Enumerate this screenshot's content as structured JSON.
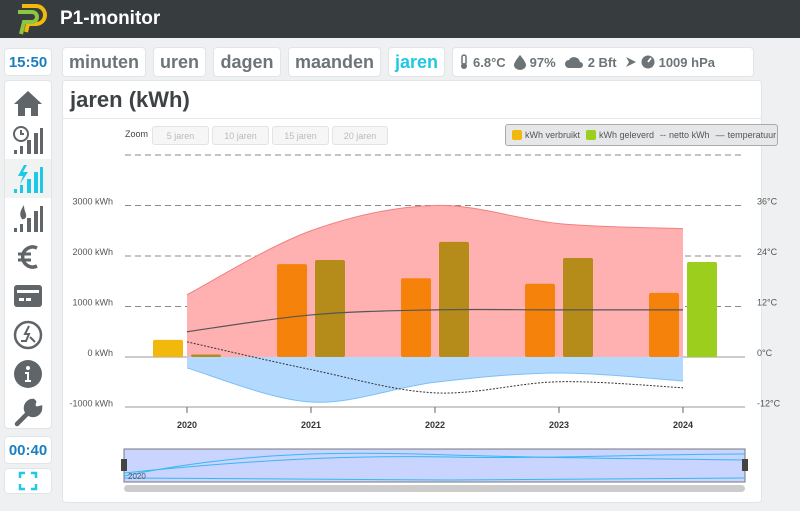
{
  "header": {
    "title": "P1-monitor",
    "logo_text": "P"
  },
  "clock": "15:50",
  "tabs": [
    {
      "label": "minuten"
    },
    {
      "label": "uren"
    },
    {
      "label": "dagen"
    },
    {
      "label": "maanden"
    },
    {
      "label": "jaren",
      "active": true
    }
  ],
  "weather": {
    "temperature": "6.8°C",
    "humidity": "97%",
    "wind": "2 Bft",
    "pressure": "1009 hPa"
  },
  "sidebar": {
    "items": [
      {
        "icon": "home-icon"
      },
      {
        "icon": "clock-bars-icon"
      },
      {
        "icon": "power-bars-icon",
        "active": true
      },
      {
        "icon": "gas-bars-icon"
      },
      {
        "icon": "euro-icon"
      },
      {
        "icon": "meter-icon"
      },
      {
        "icon": "solar-icon"
      },
      {
        "icon": "info-icon"
      },
      {
        "icon": "wrench-icon"
      }
    ]
  },
  "refresh_timer": "00:40",
  "panel": {
    "title": "jaren (kWh)"
  },
  "zoom": {
    "label": "Zoom",
    "buttons": [
      "5 jaren",
      "10 jaren",
      "15 jaren",
      "20 jaren"
    ]
  },
  "colors": {
    "accent": "#1ec8e6",
    "verbruikt": "#f5820a",
    "verbruikt_first": "#f2b90c",
    "geleverd": "#b58c1a",
    "geleverd_last": "#9ccf1d",
    "temp_max": "#ffb0b0",
    "temp_min": "#b3d9ff"
  },
  "chart_data": {
    "type": "bar",
    "categories": [
      "2020",
      "2021",
      "2022",
      "2023",
      "2024"
    ],
    "series": [
      {
        "name": "kWh verbruikt",
        "values": [
          340,
          1840,
          1560,
          1450,
          1270
        ]
      },
      {
        "name": "kWh geleverd",
        "values": [
          50,
          1920,
          2280,
          1960,
          1880
        ]
      },
      {
        "name": "netto kWh",
        "type": "line",
        "values": [
          300,
          -250,
          -710,
          -490,
          -610
        ]
      },
      {
        "name": "temperatuur",
        "type": "line",
        "values": [
          6,
          10,
          11.2,
          11.2,
          11.2
        ]
      },
      {
        "name": "temperatuur max",
        "type": "area",
        "values": [
          14.8,
          30,
          36,
          31.7,
          30.5
        ]
      },
      {
        "name": "temperatuur min",
        "type": "area",
        "values": [
          -2.6,
          -10.7,
          -6,
          -3.8,
          -5.7
        ]
      }
    ],
    "legend": [
      "kWh verbruikt",
      "kWh geleverd",
      "netto kWh",
      "temperatuur"
    ],
    "y_ticks": [
      "3000 kWh",
      "2000 kWh",
      "1000 kWh",
      "0 kWh",
      "-1000 kWh"
    ],
    "y2_ticks": [
      "36°C",
      "24°C",
      "12°C",
      "0°C",
      "-12°C"
    ],
    "ylim": [
      -1000,
      4000
    ],
    "y2lim": [
      -12,
      48
    ],
    "navigator_label": "2020"
  }
}
